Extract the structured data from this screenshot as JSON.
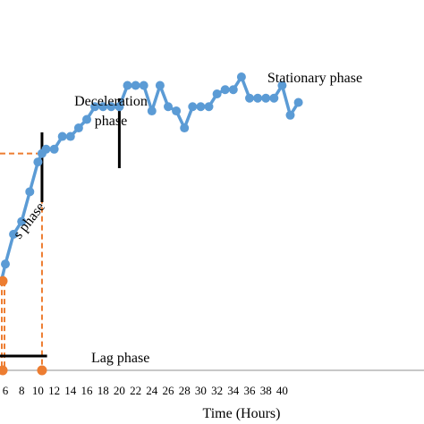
{
  "chart_data": {
    "type": "line",
    "xlabel": "Time (Hours)",
    "ylabel": "",
    "xlim": [
      5.4,
      42
    ],
    "x_ticks": [
      6,
      8,
      10,
      12,
      14,
      16,
      18,
      20,
      22,
      24,
      26,
      28,
      30,
      32,
      34,
      36,
      38,
      40
    ],
    "grid": false,
    "colors": {
      "series": "#5B9BD5",
      "guide": "#ED7D31",
      "phase_marker": "#000000"
    },
    "series": [
      {
        "x": [
          5.5,
          6,
          7,
          8,
          9,
          10,
          10.5,
          11,
          12,
          13,
          14,
          15,
          16,
          17,
          18,
          19,
          20,
          21,
          22,
          23,
          24,
          25,
          26,
          27,
          28,
          29,
          30,
          31,
          32,
          33,
          34,
          35,
          36,
          37,
          38,
          39,
          40,
          41,
          42
        ],
        "y": [
          0.58,
          0.62,
          0.69,
          0.72,
          0.79,
          0.86,
          0.88,
          0.89,
          0.89,
          0.92,
          0.92,
          0.94,
          0.96,
          0.99,
          0.99,
          0.99,
          0.99,
          1.04,
          1.04,
          1.04,
          0.98,
          1.04,
          0.99,
          0.98,
          0.94,
          0.99,
          0.99,
          0.99,
          1.02,
          1.03,
          1.03,
          1.06,
          1.01,
          1.01,
          1.01,
          1.01,
          1.04,
          0.97,
          1.0
        ]
      }
    ],
    "annotations": {
      "stationary": "Stationary phase",
      "deceleration_line1": "Deceleration",
      "deceleration_line2": "phase",
      "exponential_partial": "s phase",
      "lag": "Lag phase"
    },
    "phase_boundaries_x": [
      10.5,
      20
    ],
    "guides": {
      "markers": [
        {
          "x": 5.5,
          "y": 0.58
        },
        {
          "x": 10.5,
          "y": 0.88
        }
      ],
      "baseline_y": 0.37
    },
    "lag_bar": {
      "x_start": 5.4,
      "x_end": 12,
      "y": 0.42
    }
  }
}
